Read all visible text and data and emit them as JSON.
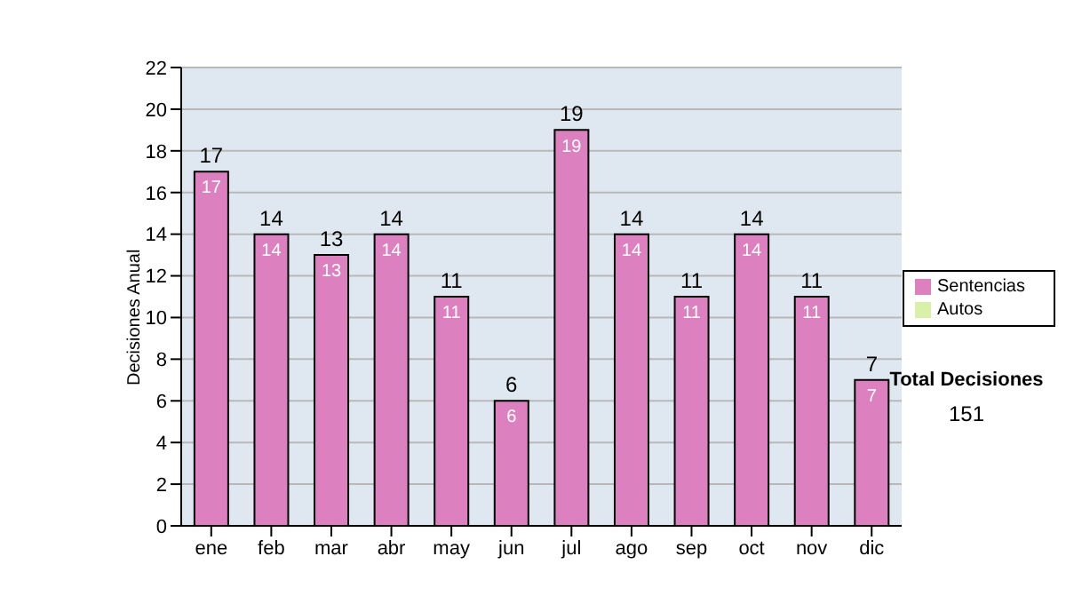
{
  "chart_data": {
    "type": "bar",
    "ylabel": "Decisiones Anual",
    "categories": [
      "ene",
      "feb",
      "mar",
      "abr",
      "may",
      "jun",
      "jul",
      "ago",
      "sep",
      "oct",
      "nov",
      "dic"
    ],
    "stacked": true,
    "series": [
      {
        "name": "Sentencias",
        "color": "#dd80c0",
        "values": [
          17,
          14,
          13,
          14,
          11,
          6,
          19,
          14,
          11,
          14,
          11,
          7
        ]
      },
      {
        "name": "Autos",
        "color": "#d8f0a8",
        "values": [
          null,
          null,
          null,
          null,
          null,
          null,
          null,
          null,
          null,
          null,
          null,
          null
        ]
      }
    ],
    "totals": [
      "17",
      "14",
      "13",
      "14",
      "11",
      "6",
      "19",
      "14",
      "11",
      "14",
      "11",
      "7"
    ],
    "data_labels": true,
    "ylim": [
      0,
      22
    ],
    "yticks": [
      0,
      2,
      4,
      6,
      8,
      10,
      12,
      14,
      16,
      18,
      20,
      22
    ],
    "grid": "y",
    "legend": "right",
    "annotations": [
      "Total Decisiones",
      "151"
    ]
  }
}
